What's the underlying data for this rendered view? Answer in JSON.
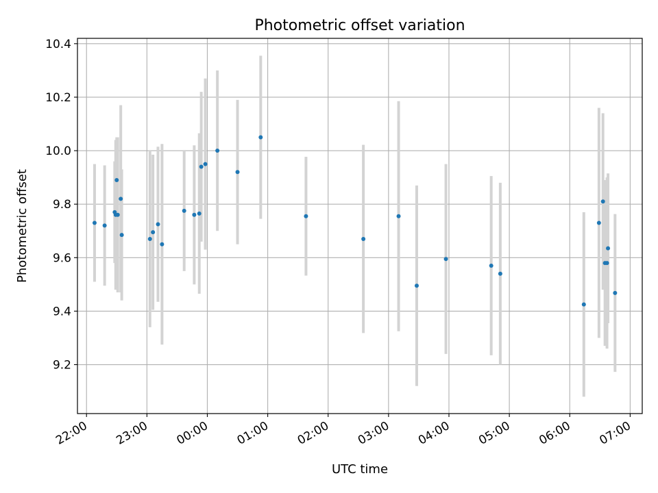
{
  "chart_data": {
    "type": "scatter",
    "title": "Photometric offset variation",
    "xlabel": "UTC time",
    "ylabel": "Photometric offset",
    "x_tick_labels": [
      "22:00",
      "23:00",
      "00:00",
      "01:00",
      "02:00",
      "03:00",
      "04:00",
      "05:00",
      "06:00",
      "07:00"
    ],
    "y_tick_labels": [
      "9.2",
      "9.4",
      "9.6",
      "9.8",
      "10.0",
      "10.2",
      "10.4"
    ],
    "x_axis_start": "22:00",
    "x_axis_end": "07:00",
    "xlim": [
      "21:51",
      "07:12"
    ],
    "ylim": [
      9.017,
      10.42
    ],
    "grid": true,
    "marker_color": "#1f77b4",
    "errorbar_color": "#d3d3d3",
    "points": [
      {
        "time": "22:08",
        "y": 9.73,
        "err": 0.22
      },
      {
        "time": "22:18",
        "y": 9.72,
        "err": 0.225
      },
      {
        "time": "22:28",
        "y": 9.77,
        "err": 0.19
      },
      {
        "time": "22:29",
        "y": 9.76,
        "err": 0.28
      },
      {
        "time": "22:30",
        "y": 9.89,
        "err": 0.16
      },
      {
        "time": "22:31",
        "y": 9.76,
        "err": 0.29
      },
      {
        "time": "22:34",
        "y": 9.82,
        "err": 0.35
      },
      {
        "time": "22:35",
        "y": 9.685,
        "err": 0.245
      },
      {
        "time": "23:03",
        "y": 9.67,
        "err": 0.33
      },
      {
        "time": "23:06",
        "y": 9.695,
        "err": 0.29
      },
      {
        "time": "23:11",
        "y": 9.725,
        "err": 0.29
      },
      {
        "time": "23:15",
        "y": 9.65,
        "err": 0.375
      },
      {
        "time": "23:37",
        "y": 9.775,
        "err": 0.225
      },
      {
        "time": "23:47",
        "y": 9.76,
        "err": 0.26
      },
      {
        "time": "23:52",
        "y": 9.765,
        "err": 0.3
      },
      {
        "time": "23:54",
        "y": 9.94,
        "err": 0.28
      },
      {
        "time": "23:58",
        "y": 9.95,
        "err": 0.32
      },
      {
        "time": "00:10",
        "y": 10.0,
        "err": 0.3
      },
      {
        "time": "00:30",
        "y": 9.92,
        "err": 0.27
      },
      {
        "time": "00:53",
        "y": 10.05,
        "err": 0.305
      },
      {
        "time": "01:38",
        "y": 9.755,
        "err": 0.222
      },
      {
        "time": "02:35",
        "y": 9.67,
        "err": 0.352
      },
      {
        "time": "03:10",
        "y": 9.755,
        "err": 0.43
      },
      {
        "time": "03:28",
        "y": 9.495,
        "err": 0.375
      },
      {
        "time": "03:57",
        "y": 9.595,
        "err": 0.355
      },
      {
        "time": "04:42",
        "y": 9.57,
        "err": 0.335
      },
      {
        "time": "04:51",
        "y": 9.54,
        "err": 0.34
      },
      {
        "time": "06:14",
        "y": 9.425,
        "err": 0.345
      },
      {
        "time": "06:29",
        "y": 9.73,
        "err": 0.43
      },
      {
        "time": "06:33",
        "y": 9.81,
        "err": 0.33
      },
      {
        "time": "06:35",
        "y": 9.58,
        "err": 0.31
      },
      {
        "time": "06:37",
        "y": 9.58,
        "err": 0.32
      },
      {
        "time": "06:38",
        "y": 9.635,
        "err": 0.28
      },
      {
        "time": "06:45",
        "y": 9.468,
        "err": 0.295
      }
    ]
  }
}
